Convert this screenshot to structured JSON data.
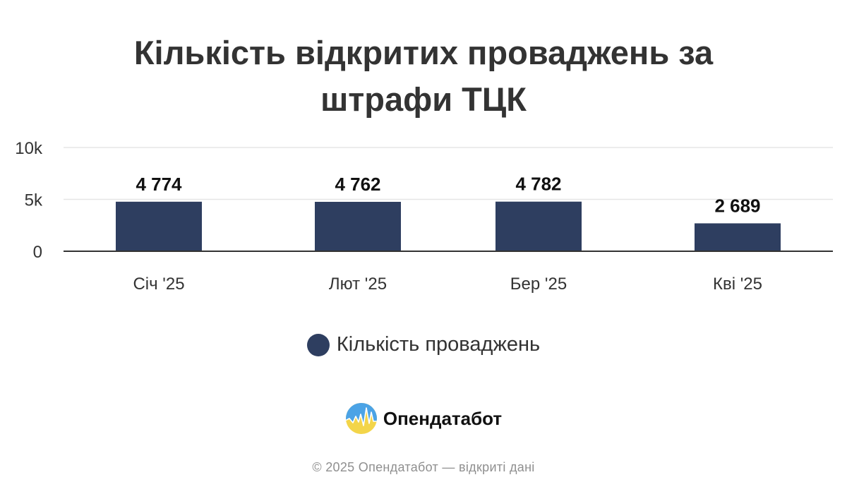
{
  "title_lines": [
    "Кількість відкритих проваджень за",
    "штрафи ТЦК"
  ],
  "chart_data": {
    "type": "bar",
    "title": "Кількість відкритих проваджень за штрафи ТЦК",
    "categories": [
      "Січ '25",
      "Лют '25",
      "Бер '25",
      "Кві '25"
    ],
    "series": [
      {
        "name": "Кількість проваджень",
        "values": [
          4774,
          4762,
          4782,
          2689
        ],
        "labels": [
          "4 774",
          "4 762",
          "4 782",
          "2 689"
        ],
        "color": "#2e3e60"
      }
    ],
    "ylim": [
      0,
      10000
    ],
    "yticks": [
      0,
      5000,
      10000
    ],
    "ytick_labels": [
      "0",
      "5k",
      "10k"
    ],
    "grid": true,
    "legend_position": "bottom",
    "xlabel": "",
    "ylabel": ""
  },
  "legend": {
    "label": "Кількість проваджень",
    "color": "#2e3e60"
  },
  "brand": {
    "name": "Опендатабот",
    "icon": "opendatabot-logo-icon"
  },
  "footer": "© 2025 Опендатабот — відкриті дані",
  "colors": {
    "bar": "#2e3e60",
    "grid": "#e6e6e6",
    "axis": "#333333",
    "title": "#333333"
  }
}
